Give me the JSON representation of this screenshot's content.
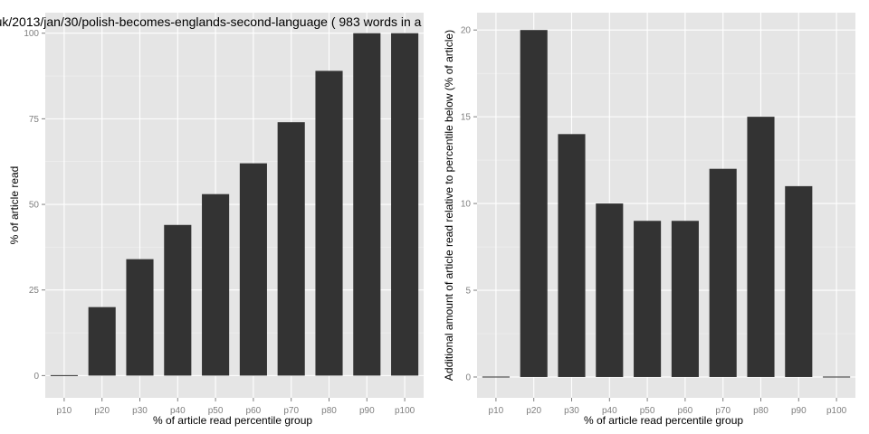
{
  "colors": {
    "panel_background": "#e5e5e5",
    "grid_major": "#ffffff",
    "grid_minor": "#f2f2f2",
    "bar_fill": "#333333",
    "tick_label": "#7f7f7f",
    "text": "#000000"
  },
  "chart_data": [
    {
      "type": "bar",
      "title": "uk/2013/jan/30/polish-becomes-englands-second-language ( 983 words in a",
      "xlabel": "% of article read percentile group",
      "ylabel": "% of article read",
      "categories": [
        "p10",
        "p20",
        "p30",
        "p40",
        "p50",
        "p60",
        "p70",
        "p80",
        "p90",
        "p100"
      ],
      "values": [
        0,
        20,
        34,
        44,
        53,
        62,
        74,
        89,
        100,
        100
      ],
      "ylim": [
        -6.5,
        106
      ],
      "yticks": [
        0,
        25,
        50,
        75,
        100
      ],
      "grid": true,
      "legend": "none"
    },
    {
      "type": "bar",
      "title": "",
      "xlabel": "% of article read percentile group",
      "ylabel": "Additional amount of article read relative to percentile below (% of article)",
      "categories": [
        "p10",
        "p20",
        "p30",
        "p40",
        "p50",
        "p60",
        "p70",
        "p80",
        "p90",
        "p100"
      ],
      "values": [
        0,
        20,
        14,
        10,
        9,
        9,
        12,
        15,
        11,
        0
      ],
      "ylim": [
        -1.2,
        21
      ],
      "yticks": [
        0,
        5,
        10,
        15,
        20
      ],
      "grid": true,
      "legend": "none"
    }
  ]
}
